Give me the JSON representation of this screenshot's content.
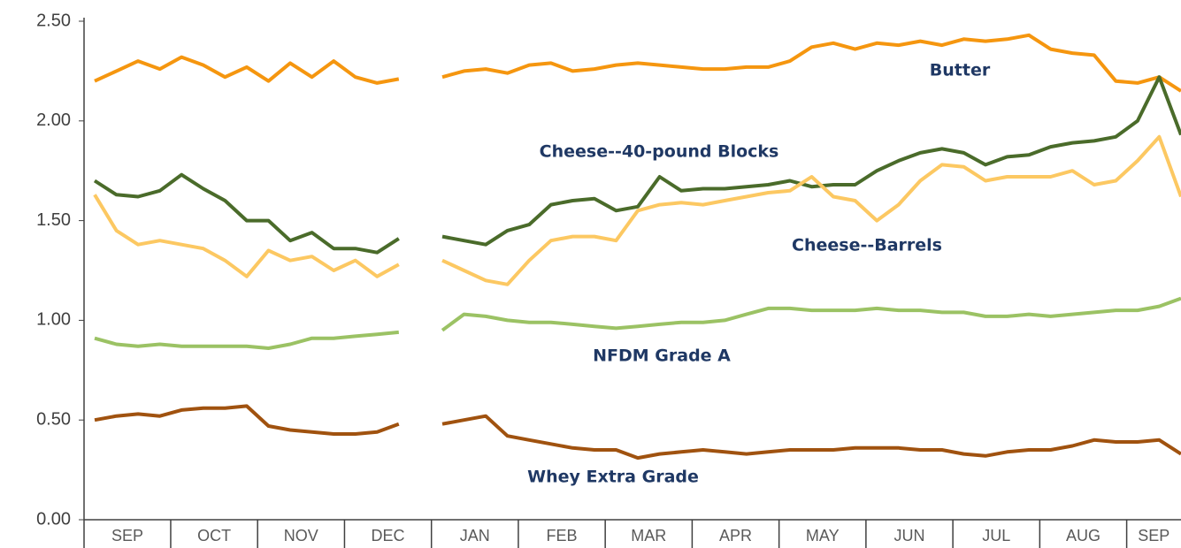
{
  "chart_data": {
    "type": "line",
    "categories": [
      "SEP",
      null,
      null,
      null,
      "OCT",
      null,
      null,
      null,
      "NOV",
      null,
      null,
      null,
      "DEC",
      null,
      null,
      null,
      "JAN",
      null,
      null,
      null,
      "FEB",
      null,
      null,
      null,
      "MAR",
      null,
      null,
      null,
      "APR",
      null,
      null,
      null,
      "MAY",
      null,
      null,
      null,
      "JUN",
      null,
      null,
      null,
      "JUL",
      null,
      null,
      null,
      "AUG",
      null,
      null,
      null,
      "SEP",
      null,
      null
    ],
    "ylim": [
      0,
      2.5
    ],
    "yticks": [
      {
        "value": 0,
        "label": "0.00"
      },
      {
        "value": 0.5,
        "label": "0.50"
      },
      {
        "value": 1,
        "label": "1.00"
      },
      {
        "value": 1.5,
        "label": "1.50"
      },
      {
        "value": 2,
        "label": "2.00"
      },
      {
        "value": 2.5,
        "label": "2.50"
      }
    ],
    "series": [
      {
        "name": "Butter",
        "color": "#f5960f",
        "values": [
          2.2,
          2.25,
          2.3,
          2.26,
          2.32,
          2.28,
          2.22,
          2.27,
          2.2,
          2.29,
          2.22,
          2.3,
          2.22,
          2.19,
          2.21,
          null,
          2.22,
          2.25,
          2.26,
          2.24,
          2.28,
          2.29,
          2.25,
          2.26,
          2.28,
          2.29,
          2.28,
          2.27,
          2.26,
          2.26,
          2.27,
          2.27,
          2.3,
          2.37,
          2.39,
          2.36,
          2.39,
          2.38,
          2.4,
          2.38,
          2.41,
          2.4,
          2.41,
          2.43,
          2.36,
          2.34,
          2.33,
          2.2,
          2.19,
          2.22,
          2.15
        ]
      },
      {
        "name": "Cheese--40-pound Blocks",
        "color": "#4a6b2a",
        "values": [
          1.7,
          1.63,
          1.62,
          1.65,
          1.73,
          1.66,
          1.6,
          1.5,
          1.5,
          1.4,
          1.44,
          1.36,
          1.36,
          1.34,
          1.41,
          null,
          1.42,
          1.4,
          1.38,
          1.45,
          1.48,
          1.58,
          1.6,
          1.61,
          1.55,
          1.57,
          1.72,
          1.65,
          1.66,
          1.66,
          1.67,
          1.68,
          1.7,
          1.67,
          1.68,
          1.68,
          1.75,
          1.8,
          1.84,
          1.86,
          1.84,
          1.78,
          1.82,
          1.83,
          1.87,
          1.89,
          1.9,
          1.92,
          2.0,
          2.22,
          1.93
        ]
      },
      {
        "name": "Cheese--Barrels",
        "color": "#fcc862",
        "values": [
          1.63,
          1.45,
          1.38,
          1.4,
          1.38,
          1.36,
          1.3,
          1.22,
          1.35,
          1.3,
          1.32,
          1.25,
          1.3,
          1.22,
          1.28,
          null,
          1.3,
          1.25,
          1.2,
          1.18,
          1.3,
          1.4,
          1.42,
          1.42,
          1.4,
          1.55,
          1.58,
          1.59,
          1.58,
          1.6,
          1.62,
          1.64,
          1.65,
          1.72,
          1.62,
          1.6,
          1.5,
          1.58,
          1.7,
          1.78,
          1.77,
          1.7,
          1.72,
          1.72,
          1.72,
          1.75,
          1.68,
          1.7,
          1.8,
          1.92,
          1.62
        ]
      },
      {
        "name": "NFDM Grade A",
        "color": "#9bc264",
        "values": [
          0.91,
          0.88,
          0.87,
          0.88,
          0.87,
          0.87,
          0.87,
          0.87,
          0.86,
          0.88,
          0.91,
          0.91,
          0.92,
          0.93,
          0.94,
          null,
          0.95,
          1.03,
          1.02,
          1.0,
          0.99,
          0.99,
          0.98,
          0.97,
          0.96,
          0.97,
          0.98,
          0.99,
          0.99,
          1.0,
          1.03,
          1.06,
          1.06,
          1.05,
          1.05,
          1.05,
          1.06,
          1.05,
          1.05,
          1.04,
          1.04,
          1.02,
          1.02,
          1.03,
          1.02,
          1.03,
          1.04,
          1.05,
          1.05,
          1.07,
          1.11
        ]
      },
      {
        "name": "Whey Extra Grade",
        "color": "#a0520f",
        "values": [
          0.5,
          0.52,
          0.53,
          0.52,
          0.55,
          0.56,
          0.56,
          0.57,
          0.47,
          0.45,
          0.44,
          0.43,
          0.43,
          0.44,
          0.48,
          null,
          0.48,
          0.5,
          0.52,
          0.42,
          0.4,
          0.38,
          0.36,
          0.35,
          0.35,
          0.31,
          0.33,
          0.34,
          0.35,
          0.34,
          0.33,
          0.34,
          0.35,
          0.35,
          0.35,
          0.36,
          0.36,
          0.36,
          0.35,
          0.35,
          0.33,
          0.32,
          0.34,
          0.35,
          0.35,
          0.37,
          0.4,
          0.39,
          0.39,
          0.4,
          0.33
        ]
      }
    ]
  }
}
